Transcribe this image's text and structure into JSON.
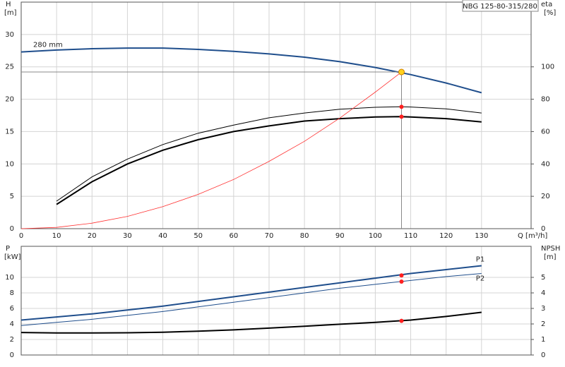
{
  "chart_data": [
    {
      "type": "line",
      "title": "NBG 125-80-315/280",
      "y_label": "H",
      "y_unit": "[m]",
      "y2_label": "eta",
      "y2_unit": "[%]",
      "x_label": "Q [m³/h]",
      "xlim": [
        0,
        144
      ],
      "xticks": [
        0,
        10,
        20,
        30,
        40,
        50,
        60,
        70,
        80,
        90,
        100,
        110,
        120,
        130
      ],
      "ylim": [
        0,
        35
      ],
      "yticks": [
        0,
        5,
        10,
        15,
        20,
        25,
        30
      ],
      "y2lim": [
        0,
        140
      ],
      "y2ticks": [
        0,
        20,
        40,
        60,
        80,
        100
      ],
      "grid": true,
      "show_xtick_labels": true,
      "series": [
        {
          "name": "280 mm",
          "color": "#1f4e8c",
          "line_width": 2,
          "axis": "y",
          "label_at": "start",
          "x": [
            0,
            10,
            20,
            30,
            40,
            50,
            60,
            70,
            80,
            90,
            100,
            110,
            120,
            130
          ],
          "values": [
            27.3,
            27.6,
            27.8,
            27.9,
            27.9,
            27.7,
            27.4,
            27.0,
            26.5,
            25.8,
            24.9,
            23.8,
            22.5,
            21.0
          ]
        },
        {
          "color": "#000000",
          "line_width": 1,
          "axis": "y2",
          "x": [
            10,
            20,
            30,
            40,
            50,
            60,
            70,
            80,
            90,
            100,
            107,
            110,
            120,
            130
          ],
          "values": [
            17,
            32,
            43,
            52,
            59,
            64,
            68.5,
            71.5,
            73.8,
            75,
            75.3,
            75.2,
            74,
            71.5
          ]
        },
        {
          "color": "#000000",
          "line_width": 2,
          "axis": "y2",
          "x": [
            10,
            20,
            30,
            40,
            50,
            60,
            70,
            80,
            90,
            100,
            107,
            110,
            120,
            130
          ],
          "values": [
            15,
            29,
            40,
            48.5,
            55,
            60,
            63.5,
            66.5,
            68,
            69,
            69.2,
            69,
            68,
            66
          ]
        },
        {
          "color": "#ff3030",
          "line_width": 0.8,
          "axis": "y",
          "x": [
            0,
            10,
            20,
            30,
            40,
            50,
            60,
            70,
            80,
            90,
            100,
            107.4
          ],
          "values": [
            0,
            0.2,
            0.85,
            1.9,
            3.4,
            5.3,
            7.6,
            10.4,
            13.5,
            17.1,
            21.1,
            24.2
          ]
        }
      ],
      "points": [
        {
          "x": 107.4,
          "y": 24.2,
          "axis": "y",
          "color": "#ffd21f",
          "crosshair": true
        },
        {
          "x": 107.4,
          "y": 75.3,
          "axis": "y2",
          "color": "#ff2020"
        },
        {
          "x": 107.4,
          "y": 69.2,
          "axis": "y2",
          "color": "#ff2020"
        }
      ]
    },
    {
      "type": "line",
      "y_label": "P",
      "y_unit": "[kW]",
      "y2_label": "NPSH",
      "y2_unit": "[m]",
      "xlim": [
        0,
        144
      ],
      "xticks": [
        0,
        10,
        20,
        30,
        40,
        50,
        60,
        70,
        80,
        90,
        100,
        110,
        120,
        130
      ],
      "ylim": [
        0,
        14
      ],
      "yticks": [
        0,
        2,
        4,
        6,
        8,
        10
      ],
      "y2lim": [
        0,
        7
      ],
      "y2ticks": [
        0,
        1,
        2,
        3,
        4,
        5
      ],
      "grid": true,
      "show_xtick_labels": false,
      "series": [
        {
          "name": "P1",
          "color": "#1f4e8c",
          "line_width": 2,
          "axis": "y",
          "label_at": "end",
          "x": [
            0,
            10,
            20,
            30,
            40,
            50,
            60,
            70,
            80,
            90,
            100,
            110,
            120,
            130
          ],
          "values": [
            4.5,
            4.9,
            5.3,
            5.8,
            6.3,
            6.9,
            7.5,
            8.1,
            8.7,
            9.3,
            9.9,
            10.5,
            11.0,
            11.5
          ]
        },
        {
          "name": "P2",
          "color": "#1f4e8c",
          "line_width": 1,
          "axis": "y",
          "label_at": "end",
          "x": [
            0,
            10,
            20,
            30,
            40,
            50,
            60,
            70,
            80,
            90,
            100,
            110,
            120,
            130
          ],
          "values": [
            3.8,
            4.2,
            4.6,
            5.1,
            5.6,
            6.2,
            6.8,
            7.4,
            8.0,
            8.6,
            9.1,
            9.6,
            10.1,
            10.5
          ]
        },
        {
          "color": "#000000",
          "line_width": 2,
          "axis": "y2",
          "x": [
            0,
            10,
            20,
            30,
            40,
            50,
            60,
            70,
            80,
            90,
            100,
            110,
            120,
            130
          ],
          "values": [
            1.45,
            1.42,
            1.42,
            1.43,
            1.47,
            1.53,
            1.62,
            1.73,
            1.85,
            1.98,
            2.1,
            2.25,
            2.48,
            2.75
          ]
        }
      ],
      "points": [
        {
          "x": 107.4,
          "y": 10.25,
          "axis": "y",
          "color": "#ff2020"
        },
        {
          "x": 107.4,
          "y": 9.45,
          "axis": "y",
          "color": "#ff2020"
        },
        {
          "x": 107.4,
          "y": 2.2,
          "axis": "y2",
          "color": "#ff2020"
        }
      ]
    }
  ]
}
